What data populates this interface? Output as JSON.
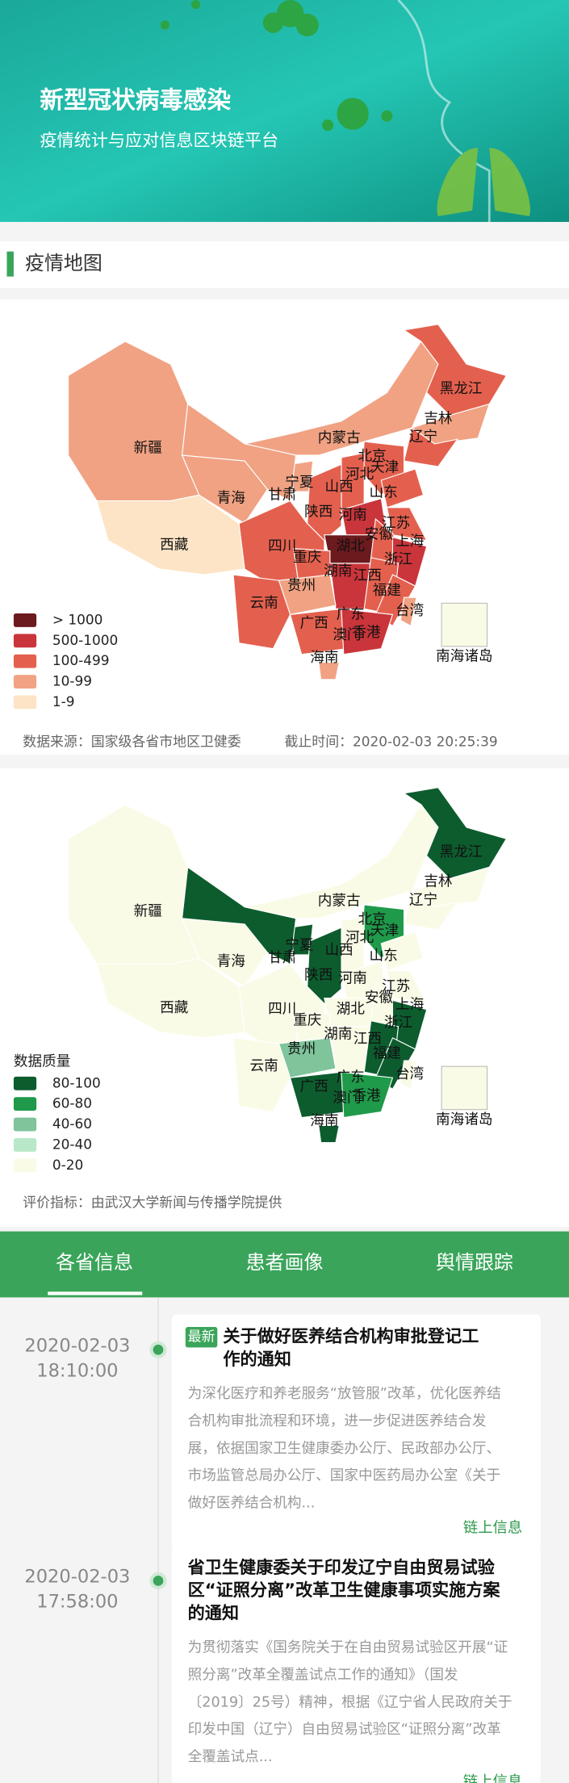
{
  "header": {
    "title": "新型冠状病毒感染",
    "subtitle": "疫情统计与应对信息区块链平台"
  },
  "section": {
    "title": "疫情地图"
  },
  "maps": [
    {
      "legend": [
        {
          "label": "> 1000",
          "color": "#6b1a1e"
        },
        {
          "label": "500-1000",
          "color": "#c9353a"
        },
        {
          "label": "100-499",
          "color": "#e4604e"
        },
        {
          "label": "10-99",
          "color": "#f0a283"
        },
        {
          "label": "1-9",
          "color": "#fde4c6"
        }
      ],
      "provinces": [
        {
          "name": "黑龙江",
          "color": "#e4604e"
        },
        {
          "name": "吉林",
          "color": "#f0a283"
        },
        {
          "name": "辽宁",
          "color": "#e4604e"
        },
        {
          "name": "内蒙古",
          "color": "#f0a283"
        },
        {
          "name": "北京",
          "color": "#e4604e"
        },
        {
          "name": "天津",
          "color": "#f0a283"
        },
        {
          "name": "河北",
          "color": "#e4604e"
        },
        {
          "name": "新疆",
          "color": "#f0a283"
        },
        {
          "name": "宁夏",
          "color": "#f0a283"
        },
        {
          "name": "山西",
          "color": "#e4604e"
        },
        {
          "name": "山东",
          "color": "#e4604e"
        },
        {
          "name": "青海",
          "color": "#f0a283"
        },
        {
          "name": "甘肃",
          "color": "#f0a283"
        },
        {
          "name": "陕西",
          "color": "#e4604e"
        },
        {
          "name": "河南",
          "color": "#c9353a"
        },
        {
          "name": "江苏",
          "color": "#e4604e"
        },
        {
          "name": "西藏",
          "color": "#fde4c6"
        },
        {
          "name": "四川",
          "color": "#e4604e"
        },
        {
          "name": "湖北",
          "color": "#6b1a1e"
        },
        {
          "name": "安徽",
          "color": "#e4604e"
        },
        {
          "name": "上海",
          "color": "#e4604e"
        },
        {
          "name": "重庆",
          "color": "#e4604e"
        },
        {
          "name": "浙江",
          "color": "#c9353a"
        },
        {
          "name": "湖南",
          "color": "#c9353a"
        },
        {
          "name": "江西",
          "color": "#e4604e"
        },
        {
          "name": "贵州",
          "color": "#f0a283"
        },
        {
          "name": "福建",
          "color": "#e4604e"
        },
        {
          "name": "云南",
          "color": "#e4604e"
        },
        {
          "name": "台湾",
          "color": "#f0a283"
        },
        {
          "name": "广西",
          "color": "#e4604e"
        },
        {
          "name": "广东",
          "color": "#c9353a"
        },
        {
          "name": "澳门",
          "color": "#f0a283"
        },
        {
          "name": "香港",
          "color": "#f0a283"
        },
        {
          "name": "海南",
          "color": "#f0a283"
        },
        {
          "name": "南海诸岛",
          "color": "#f0a283"
        }
      ],
      "footer": [
        "数据来源：国家级各省市地区卫健委",
        "截止时间：2020-02-03 20:25:39"
      ]
    },
    {
      "legend_title": "数据质量",
      "legend": [
        {
          "label": "80-100",
          "color": "#0d5c2e"
        },
        {
          "label": "60-80",
          "color": "#1f9a4a"
        },
        {
          "label": "40-60",
          "color": "#7fc49a"
        },
        {
          "label": "20-40",
          "color": "#b8e8c8"
        },
        {
          "label": "0-20",
          "color": "#fafbe6"
        }
      ],
      "provinces": [
        {
          "name": "黑龙江",
          "color": "#0d5c2e"
        },
        {
          "name": "吉林",
          "color": "#fafbe6"
        },
        {
          "name": "辽宁",
          "color": "#fafbe6"
        },
        {
          "name": "内蒙古",
          "color": "#fafbe6"
        },
        {
          "name": "北京",
          "color": "#1f9a4a"
        },
        {
          "name": "天津",
          "color": "#0d5c2e"
        },
        {
          "name": "河北",
          "color": "#1f9a4a"
        },
        {
          "name": "新疆",
          "color": "#fafbe6"
        },
        {
          "name": "宁夏",
          "color": "#0d5c2e"
        },
        {
          "name": "山西",
          "color": "#fafbe6"
        },
        {
          "name": "山东",
          "color": "#fafbe6"
        },
        {
          "name": "青海",
          "color": "#fafbe6"
        },
        {
          "name": "甘肃",
          "color": "#0d5c2e"
        },
        {
          "name": "陕西",
          "color": "#0d5c2e"
        },
        {
          "name": "河南",
          "color": "#fafbe6"
        },
        {
          "name": "江苏",
          "color": "#fafbe6"
        },
        {
          "name": "西藏",
          "color": "#fafbe6"
        },
        {
          "name": "四川",
          "color": "#fafbe6"
        },
        {
          "name": "湖北",
          "color": "#fafbe6"
        },
        {
          "name": "安徽",
          "color": "#fafbe6"
        },
        {
          "name": "上海",
          "color": "#0d5c2e"
        },
        {
          "name": "重庆",
          "color": "#fafbe6"
        },
        {
          "name": "浙江",
          "color": "#0d5c2e"
        },
        {
          "name": "湖南",
          "color": "#fafbe6"
        },
        {
          "name": "江西",
          "color": "#0d5c2e"
        },
        {
          "name": "贵州",
          "color": "#7fc49a"
        },
        {
          "name": "福建",
          "color": "#0d5c2e"
        },
        {
          "name": "云南",
          "color": "#fafbe6"
        },
        {
          "name": "台湾",
          "color": "#fafbe6"
        },
        {
          "name": "广西",
          "color": "#0d5c2e"
        },
        {
          "name": "广东",
          "color": "#1f9a4a"
        },
        {
          "name": "澳门",
          "color": "#fafbe6"
        },
        {
          "name": "香港",
          "color": "#fafbe6"
        },
        {
          "name": "海南",
          "color": "#0d5c2e"
        },
        {
          "name": "南海诸岛",
          "color": "#fafbe6"
        }
      ],
      "footer": [
        "评价指标：由武汉大学新闻与传播学院提供"
      ]
    }
  ],
  "tabs": [
    "各省信息",
    "患者画像",
    "舆情跟踪"
  ],
  "timeline": [
    {
      "date": "2020-02-03",
      "time": "18:10:00",
      "badge": "最新",
      "title": [
        "关于做好医养结合机构审批登记工",
        "作的通知"
      ],
      "body": [
        "为深化医疗和养老服务“放管服”改革，优化医养结",
        "合机构审批流程和环境，进一步促进医养结合发",
        "展，依据国家卫生健康委办公厅、民政部办公厅、",
        "市场监管总局办公厅、国家中医药局办公室《关于",
        "做好医养结合机构..."
      ],
      "link": "链上信息"
    },
    {
      "date": "2020-02-03",
      "time": "17:58:00",
      "title": [
        "省卫生健康委关于印发辽宁自由贸易试验",
        "区“证照分离”改革卫生健康事项实施方案",
        "的通知"
      ],
      "body": [
        "为贯彻落实《国务院关于在自由贸易试验区开展“证",
        "照分离”改革全覆盖试点工作的通知》（国发",
        "〔2019〕25号）精神，根据《辽宁省人民政府关于",
        "印发中国（辽宁）自由贸易试验区“证照分离”改革",
        "全覆盖试点..."
      ],
      "link": "链上信息"
    }
  ]
}
